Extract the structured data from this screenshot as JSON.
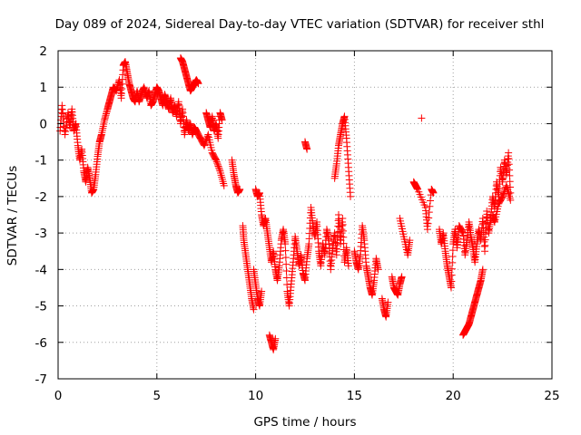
{
  "chart_data": {
    "type": "scatter",
    "title": "Day 089 of 2024, Sidereal Day-to-day VTEC variation (SDTVAR) for receiver sthl",
    "xlabel": "GPS time / hours",
    "ylabel": "SDTVAR / TECUs",
    "xlim": [
      0,
      25
    ],
    "ylim": [
      -7,
      2
    ],
    "xticks": [
      "0",
      "5",
      "10",
      "15",
      "20",
      "25"
    ],
    "yticks": [
      "2",
      "1",
      "0",
      "-1",
      "-2",
      "-3",
      "-4",
      "-5",
      "-6",
      "-7"
    ],
    "grid": true,
    "marker": "plus",
    "series": [
      {
        "name": "SDTVAR",
        "color": "#ff0000",
        "segments": [
          [
            [
              0.1,
              -0.2
            ],
            [
              0.2,
              0.5
            ],
            [
              0.35,
              -0.3
            ],
            [
              0.5,
              0.3
            ],
            [
              0.6,
              -0.1
            ],
            [
              0.7,
              0.4
            ],
            [
              0.8,
              -0.2
            ],
            [
              0.9,
              0.0
            ],
            [
              1.0,
              -0.6
            ],
            [
              1.1,
              -1.0
            ],
            [
              1.2,
              -0.7
            ],
            [
              1.3,
              -1.3
            ],
            [
              1.4,
              -1.6
            ],
            [
              1.5,
              -1.2
            ],
            [
              1.6,
              -1.5
            ],
            [
              1.7,
              -1.9
            ],
            [
              1.8,
              -1.8
            ],
            [
              1.9,
              -1.4
            ],
            [
              2.0,
              -0.9
            ],
            [
              2.1,
              -0.5
            ],
            [
              2.2,
              -0.3
            ],
            [
              2.35,
              0.1
            ],
            [
              2.5,
              0.4
            ],
            [
              2.6,
              0.6
            ],
            [
              2.7,
              0.8
            ],
            [
              2.8,
              1.0
            ],
            [
              2.95,
              0.9
            ],
            [
              3.1,
              1.2
            ],
            [
              3.2,
              0.7
            ],
            [
              3.3,
              1.6
            ],
            [
              3.4,
              1.7
            ],
            [
              3.5,
              1.4
            ],
            [
              3.6,
              1.1
            ],
            [
              3.7,
              0.9
            ],
            [
              3.8,
              0.7
            ],
            [
              3.9,
              0.6
            ],
            [
              4.0,
              0.9
            ],
            [
              4.1,
              0.6
            ],
            [
              4.2,
              0.8
            ],
            [
              4.35,
              1.0
            ],
            [
              4.5,
              0.7
            ],
            [
              4.6,
              0.9
            ],
            [
              4.7,
              0.5
            ],
            [
              4.8,
              0.6
            ],
            [
              4.9,
              0.8
            ],
            [
              5.0,
              1.0
            ],
            [
              5.1,
              0.9
            ],
            [
              5.2,
              0.7
            ],
            [
              5.3,
              0.5
            ],
            [
              5.4,
              0.8
            ],
            [
              5.5,
              0.6
            ],
            [
              5.6,
              0.4
            ],
            [
              5.7,
              0.7
            ],
            [
              5.8,
              0.3
            ],
            [
              5.9,
              0.5
            ],
            [
              6.0,
              0.2
            ],
            [
              6.1,
              0.6
            ],
            [
              6.2,
              0.0
            ],
            [
              6.3,
              0.4
            ],
            [
              6.4,
              -0.3
            ],
            [
              6.5,
              0.1
            ],
            [
              6.6,
              -0.2
            ],
            [
              6.7,
              0.0
            ],
            [
              6.8,
              -0.3
            ],
            [
              6.9,
              -0.1
            ],
            [
              7.0,
              -0.2
            ],
            [
              7.2,
              -0.4
            ],
            [
              7.4,
              -0.6
            ],
            [
              7.6,
              -0.3
            ],
            [
              7.8,
              -0.8
            ],
            [
              8.0,
              -1.0
            ],
            [
              8.2,
              -1.3
            ],
            [
              8.4,
              -1.7
            ]
          ],
          [
            [
              6.2,
              1.8
            ],
            [
              6.3,
              1.7
            ],
            [
              6.4,
              1.5
            ],
            [
              6.5,
              1.3
            ],
            [
              6.6,
              1.1
            ],
            [
              6.7,
              0.9
            ],
            [
              6.8,
              1.0
            ],
            [
              6.9,
              1.1
            ],
            [
              7.0,
              1.2
            ],
            [
              7.1,
              1.1
            ]
          ],
          [
            [
              7.5,
              0.3
            ],
            [
              7.6,
              0.1
            ],
            [
              7.7,
              -0.1
            ],
            [
              7.8,
              0.2
            ],
            [
              7.9,
              -0.2
            ],
            [
              8.0,
              0.0
            ],
            [
              8.1,
              -0.4
            ],
            [
              8.2,
              0.3
            ],
            [
              8.3,
              0.1
            ]
          ],
          [
            [
              8.8,
              -1.0
            ],
            [
              8.9,
              -1.4
            ],
            [
              9.0,
              -1.7
            ],
            [
              9.1,
              -1.9
            ],
            [
              9.2,
              -1.8
            ]
          ],
          [
            [
              9.35,
              -2.8
            ],
            [
              9.4,
              -3.2
            ],
            [
              9.5,
              -3.6
            ],
            [
              9.6,
              -4.0
            ],
            [
              9.7,
              -4.4
            ],
            [
              9.8,
              -4.8
            ],
            [
              9.9,
              -5.1
            ]
          ],
          [
            [
              10.0,
              -1.8
            ],
            [
              10.1,
              -2.0
            ],
            [
              10.2,
              -1.9
            ],
            [
              10.3,
              -2.5
            ],
            [
              10.4,
              -2.8
            ],
            [
              10.5,
              -2.6
            ],
            [
              10.6,
              -3.0
            ],
            [
              10.7,
              -3.4
            ],
            [
              10.8,
              -3.8
            ],
            [
              10.9,
              -3.5
            ],
            [
              11.0,
              -4.0
            ],
            [
              11.1,
              -4.3
            ],
            [
              11.2,
              -3.9
            ],
            [
              11.3,
              -3.2
            ],
            [
              11.4,
              -2.9
            ],
            [
              11.5,
              -3.3
            ],
            [
              11.6,
              -4.6
            ],
            [
              11.7,
              -5.0
            ],
            [
              11.8,
              -4.4
            ],
            [
              11.9,
              -3.8
            ],
            [
              12.0,
              -3.1
            ],
            [
              12.1,
              -3.5
            ],
            [
              12.2,
              -3.9
            ],
            [
              12.3,
              -3.6
            ],
            [
              12.4,
              -4.1
            ],
            [
              12.5,
              -4.3
            ],
            [
              12.6,
              -3.7
            ],
            [
              12.7,
              -3.3
            ],
            [
              12.8,
              -2.3
            ],
            [
              12.9,
              -2.8
            ],
            [
              13.0,
              -3.1
            ],
            [
              13.1,
              -2.7
            ],
            [
              13.2,
              -3.5
            ],
            [
              13.3,
              -3.9
            ],
            [
              13.4,
              -3.3
            ],
            [
              13.5,
              -3.6
            ],
            [
              13.6,
              -2.9
            ],
            [
              13.7,
              -3.2
            ],
            [
              13.8,
              -4.0
            ],
            [
              13.9,
              -3.4
            ],
            [
              14.0,
              -3.0
            ],
            [
              14.1,
              -3.6
            ],
            [
              14.2,
              -2.5
            ],
            [
              14.3,
              -3.3
            ],
            [
              14.4,
              -2.6
            ],
            [
              14.5,
              -3.8
            ],
            [
              14.6,
              -3.4
            ],
            [
              14.7,
              -3.9
            ]
          ],
          [
            [
              9.9,
              -4.0
            ],
            [
              10.0,
              -4.4
            ],
            [
              10.1,
              -4.8
            ],
            [
              10.2,
              -5.0
            ],
            [
              10.3,
              -4.6
            ]
          ],
          [
            [
              10.7,
              -5.8
            ],
            [
              10.8,
              -6.0
            ],
            [
              10.9,
              -6.2
            ],
            [
              11.0,
              -5.9
            ]
          ],
          [
            [
              12.5,
              -0.5
            ],
            [
              12.6,
              -0.7
            ]
          ],
          [
            [
              14.0,
              -1.5
            ],
            [
              14.1,
              -1.1
            ],
            [
              14.2,
              -0.6
            ],
            [
              14.3,
              -0.3
            ],
            [
              14.4,
              0.0
            ],
            [
              14.5,
              0.2
            ],
            [
              14.6,
              -0.4
            ],
            [
              14.7,
              -1.2
            ],
            [
              14.8,
              -2.0
            ]
          ],
          [
            [
              15.0,
              -3.5
            ],
            [
              15.1,
              -3.8
            ],
            [
              15.2,
              -4.0
            ],
            [
              15.3,
              -3.6
            ],
            [
              15.4,
              -2.8
            ],
            [
              15.5,
              -3.2
            ],
            [
              15.6,
              -3.9
            ],
            [
              15.7,
              -4.2
            ],
            [
              15.8,
              -4.5
            ],
            [
              15.9,
              -4.7
            ],
            [
              16.0,
              -4.3
            ],
            [
              16.1,
              -3.7
            ],
            [
              16.2,
              -4.0
            ]
          ],
          [
            [
              16.4,
              -4.8
            ],
            [
              16.5,
              -5.1
            ],
            [
              16.6,
              -5.3
            ],
            [
              16.7,
              -4.9
            ]
          ],
          [
            [
              16.9,
              -4.2
            ],
            [
              17.0,
              -4.5
            ],
            [
              17.1,
              -4.6
            ],
            [
              17.2,
              -4.7
            ],
            [
              17.3,
              -4.4
            ],
            [
              17.4,
              -4.2
            ]
          ],
          [
            [
              17.3,
              -2.6
            ],
            [
              17.5,
              -3.1
            ],
            [
              17.7,
              -3.6
            ],
            [
              17.8,
              -3.2
            ]
          ],
          [
            [
              18.4,
              0.15
            ]
          ],
          [
            [
              18.0,
              -1.6
            ],
            [
              18.1,
              -1.7
            ],
            [
              18.2,
              -1.8
            ],
            [
              18.6,
              -2.3
            ],
            [
              18.7,
              -2.9
            ],
            [
              18.9,
              -1.8
            ],
            [
              19.0,
              -1.9
            ]
          ],
          [
            [
              19.3,
              -2.9
            ],
            [
              19.4,
              -3.3
            ],
            [
              19.5,
              -3.0
            ],
            [
              19.6,
              -3.5
            ],
            [
              19.7,
              -3.9
            ],
            [
              19.8,
              -4.2
            ],
            [
              19.9,
              -4.5
            ],
            [
              20.0,
              -3.3
            ],
            [
              20.1,
              -2.9
            ],
            [
              20.2,
              -3.4
            ],
            [
              20.3,
              -2.8
            ],
            [
              20.5,
              -3.0
            ],
            [
              20.6,
              -3.6
            ],
            [
              20.7,
              -3.2
            ],
            [
              20.8,
              -2.7
            ],
            [
              20.9,
              -3.1
            ],
            [
              21.0,
              -3.4
            ],
            [
              21.1,
              -3.8
            ],
            [
              21.2,
              -3.3
            ],
            [
              21.3,
              -2.9
            ],
            [
              21.4,
              -3.2
            ],
            [
              21.5,
              -2.6
            ],
            [
              21.6,
              -3.5
            ],
            [
              21.7,
              -2.4
            ],
            [
              21.8,
              -3.0
            ],
            [
              21.9,
              -2.6
            ],
            [
              22.0,
              -2.0
            ],
            [
              22.1,
              -2.3
            ],
            [
              22.2,
              -1.6
            ],
            [
              22.3,
              -2.0
            ],
            [
              22.4,
              -1.2
            ],
            [
              22.5,
              -1.6
            ],
            [
              22.6,
              -1.0
            ],
            [
              22.7,
              -1.4
            ],
            [
              22.8,
              -0.8
            ],
            [
              22.9,
              -1.9
            ]
          ],
          [
            [
              20.5,
              -5.8
            ],
            [
              20.6,
              -5.7
            ],
            [
              20.7,
              -5.6
            ],
            [
              20.8,
              -5.5
            ],
            [
              20.9,
              -5.3
            ],
            [
              21.0,
              -5.1
            ],
            [
              21.1,
              -4.9
            ],
            [
              21.2,
              -4.7
            ],
            [
              21.3,
              -4.5
            ],
            [
              21.4,
              -4.3
            ],
            [
              21.5,
              -4.0
            ]
          ],
          [
            [
              22.0,
              -2.5
            ],
            [
              22.1,
              -2.7
            ],
            [
              22.3,
              -2.2
            ],
            [
              22.5,
              -2.0
            ],
            [
              22.7,
              -1.7
            ],
            [
              22.9,
              -2.1
            ]
          ]
        ]
      }
    ]
  }
}
